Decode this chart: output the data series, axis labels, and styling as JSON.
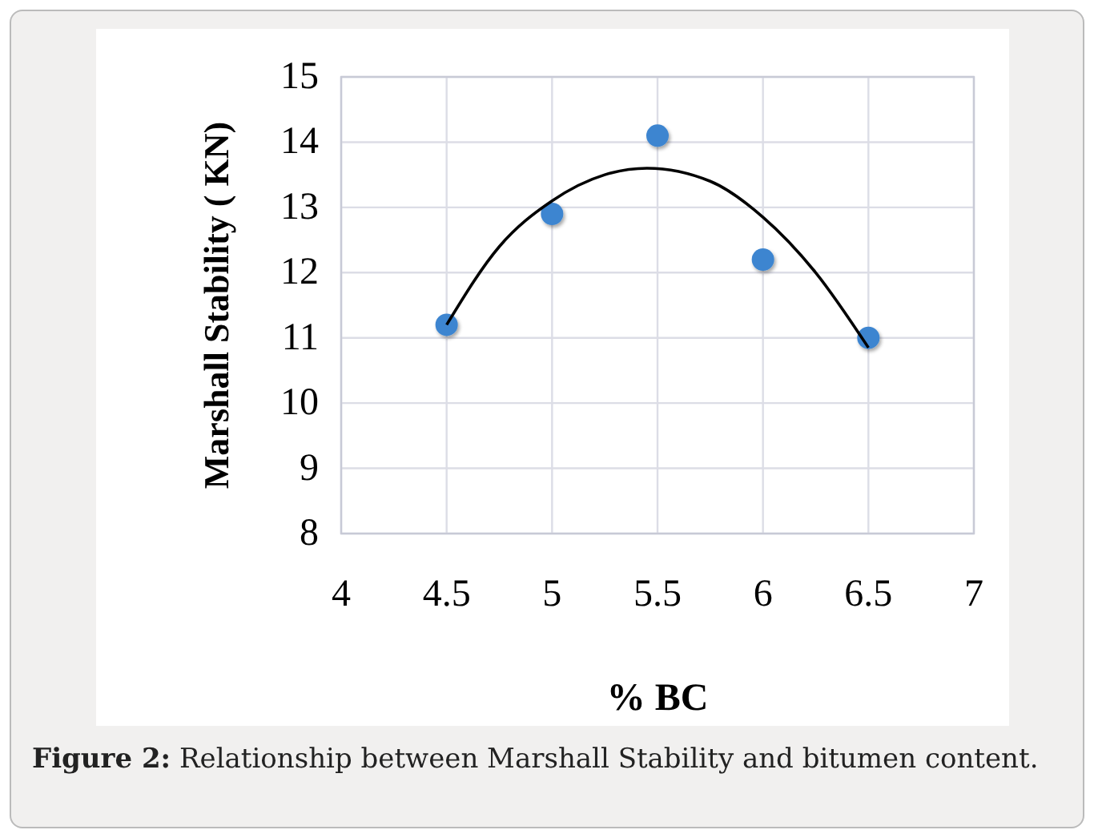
{
  "chart_data": {
    "type": "scatter",
    "xlabel": "% BC",
    "ylabel": "Marshall Stability ( KN)",
    "xlim": [
      4,
      7
    ],
    "xticks": [
      4,
      4.5,
      5,
      5.5,
      6,
      6.5,
      7
    ],
    "ylim": [
      8,
      15
    ],
    "yticks": [
      8,
      9,
      10,
      11,
      12,
      13,
      14,
      15
    ],
    "grid": true,
    "series": [
      {
        "color": "#3d85d0",
        "marker": "circle",
        "x": [
          4.5,
          5,
          5.5,
          6,
          6.5
        ],
        "values": [
          11.2,
          12.9,
          14.1,
          12.2,
          11.0
        ]
      },
      {
        "type": "line",
        "color": "#000000",
        "x": [
          4.5,
          4.75,
          5,
          5.25,
          5.45,
          5.75,
          6,
          6.25,
          6.5
        ],
        "values": [
          11.2,
          12.4,
          13.1,
          13.5,
          13.6,
          13.4,
          12.85,
          12.0,
          10.85
        ]
      }
    ],
    "annotations": [
      "Figure 2: Relationship between Marshall Stability and bitumen content."
    ]
  }
}
